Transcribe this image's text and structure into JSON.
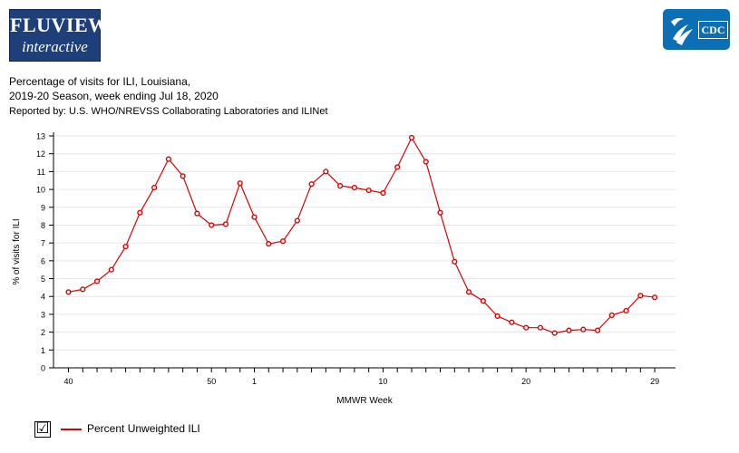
{
  "branding": {
    "fluview_line1": "FLUVIEW",
    "fluview_line2": "interactive",
    "cdc": "CDC"
  },
  "header": {
    "title_line1": "Percentage of visits for ILI, Louisiana,",
    "title_line2": "2019-20 Season, week ending Jul 18, 2020",
    "reported_by": "Reported by: U.S. WHO/NREVSS Collaborating Laboratories and ILINet"
  },
  "legend": {
    "checked": true,
    "check_glyph": "☑",
    "label": "Percent Unweighted ILI",
    "color": "#e00000"
  },
  "chart_data": {
    "type": "line",
    "xlabel": "MMWR Week",
    "ylabel": "% of visits for ILI",
    "ylim": [
      0,
      13
    ],
    "yticks": [
      0,
      1,
      2,
      3,
      4,
      5,
      6,
      7,
      8,
      9,
      10,
      11,
      12,
      13
    ],
    "grid": true,
    "weeks": [
      40,
      41,
      42,
      43,
      44,
      45,
      46,
      47,
      48,
      49,
      50,
      51,
      52,
      1,
      2,
      3,
      4,
      5,
      6,
      7,
      8,
      9,
      10,
      11,
      12,
      13,
      14,
      15,
      16,
      17,
      18,
      19,
      20,
      21,
      22,
      23,
      24,
      25,
      26,
      27,
      28,
      29
    ],
    "xtick_labels": [
      "40",
      "50",
      "1",
      "10",
      "20",
      "29"
    ],
    "series": [
      {
        "name": "Percent Unweighted ILI",
        "color": "#e00000",
        "values": [
          4.25,
          4.4,
          4.85,
          5.5,
          6.8,
          8.7,
          10.1,
          11.7,
          10.75,
          8.65,
          8.0,
          8.05,
          10.35,
          8.45,
          6.95,
          7.1,
          8.25,
          10.3,
          11.0,
          10.2,
          10.1,
          9.95,
          9.8,
          11.25,
          12.9,
          11.55,
          8.7,
          5.95,
          4.25,
          3.75,
          2.9,
          2.55,
          2.25,
          2.25,
          1.95,
          2.1,
          2.15,
          2.1,
          2.95,
          3.2,
          4.05,
          3.95
        ]
      }
    ]
  }
}
